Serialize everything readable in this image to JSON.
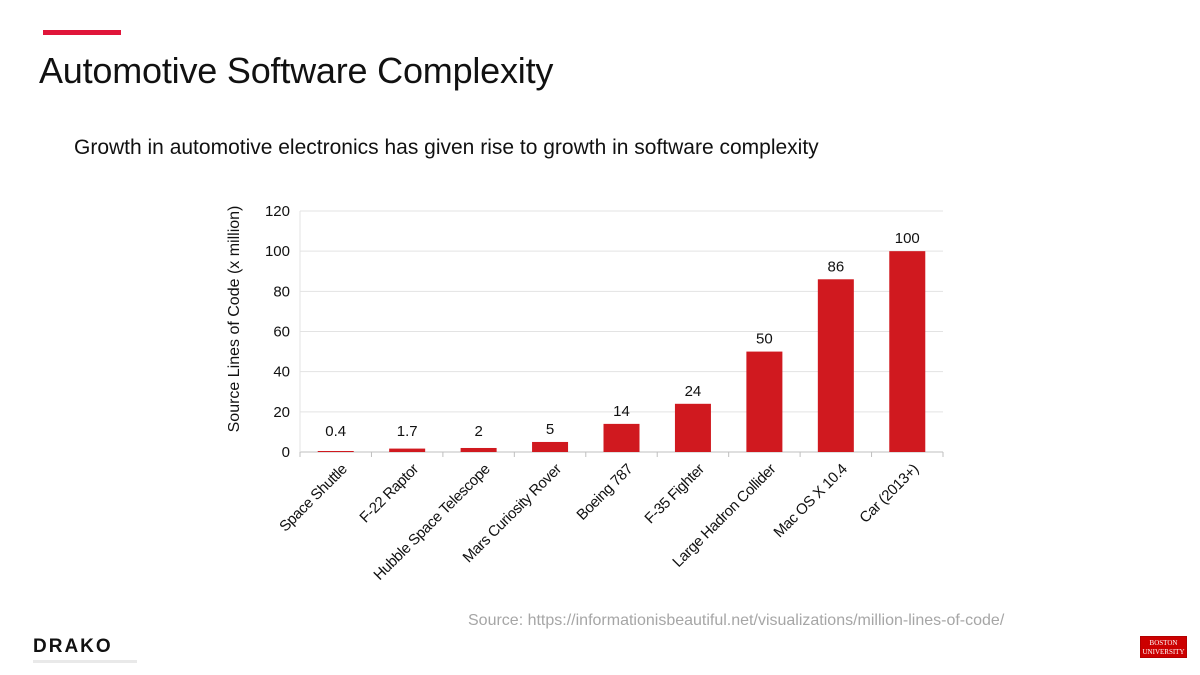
{
  "slide": {
    "title": "Automotive Software Complexity",
    "subtitle": "Growth in automotive electronics has given rise to growth in software complexity",
    "source": "Source: https://informationisbeautiful.net/visualizations/million-lines-of-code/",
    "accent_color": "#e0153a"
  },
  "logos": {
    "drako": "DRAKO",
    "bu_line1": "BOSTON",
    "bu_line2": "UNIVERSITY",
    "bu_color": "#cc0000"
  },
  "chart_data": {
    "type": "bar",
    "title": "",
    "xlabel": "",
    "ylabel": "Source Lines of Code (x million)",
    "categories": [
      "Space Shuttle",
      "F-22 Raptor",
      "Hubble Space Telescope",
      "Mars Curiosity Rover",
      "Boeing 787",
      "F-35 Fighter",
      "Large Hadron Collider",
      "Mac OS X 10.4",
      "Car (2013+)"
    ],
    "values": [
      0.4,
      1.7,
      2,
      5,
      14,
      24,
      50,
      86,
      100
    ],
    "data_labels": [
      "0.4",
      "1.7",
      "2",
      "5",
      "14",
      "24",
      "50",
      "86",
      "100"
    ],
    "ylim": [
      0,
      120
    ],
    "yticks": [
      0,
      20,
      40,
      60,
      80,
      100,
      120
    ],
    "grid": true,
    "bar_color": "#d0191f",
    "legend": "none"
  }
}
